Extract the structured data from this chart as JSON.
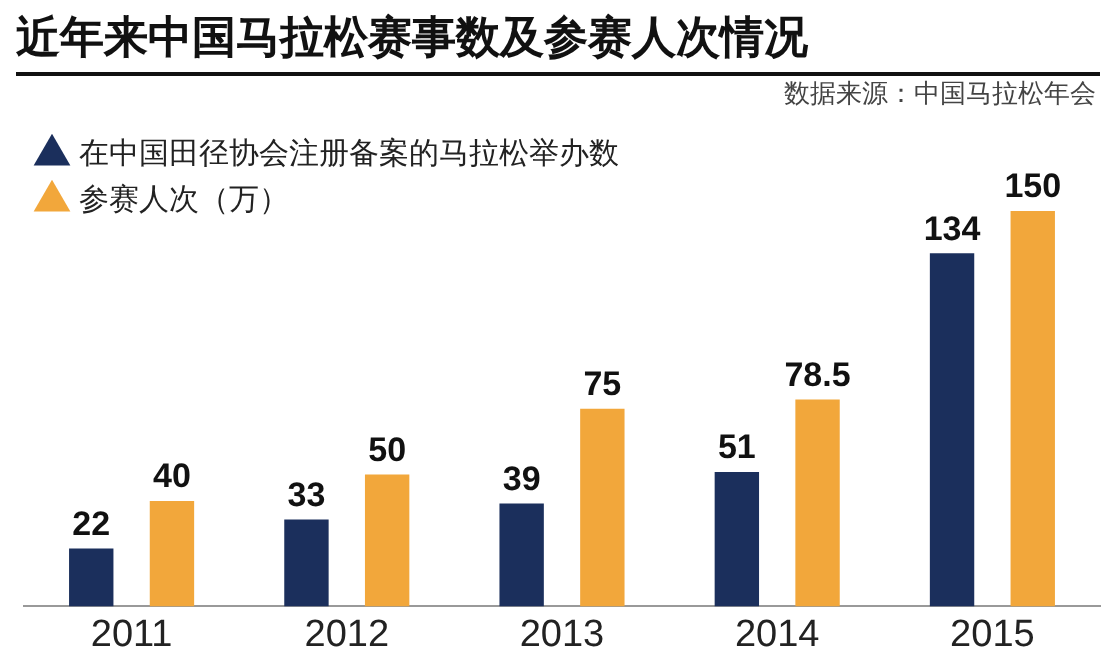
{
  "chart_data": {
    "type": "bar",
    "title": "近年来中国马拉松赛事数及参赛人次情况",
    "annotations": [
      "数据来源：中国马拉松年会"
    ],
    "categories": [
      "2011",
      "2012",
      "2013",
      "2014",
      "2015"
    ],
    "series": [
      {
        "name": "在中国田径协会注册备案的马拉松举办数",
        "color": "#1b2f5c",
        "values": [
          22,
          33,
          39,
          51,
          134
        ]
      },
      {
        "name": "参赛人次（万）",
        "color": "#f2a73b",
        "values": [
          40,
          50,
          75,
          78.5,
          150
        ]
      }
    ],
    "relative": false,
    "data_labels": true,
    "grid": false,
    "legend": "top left",
    "marker": "triangle"
  }
}
